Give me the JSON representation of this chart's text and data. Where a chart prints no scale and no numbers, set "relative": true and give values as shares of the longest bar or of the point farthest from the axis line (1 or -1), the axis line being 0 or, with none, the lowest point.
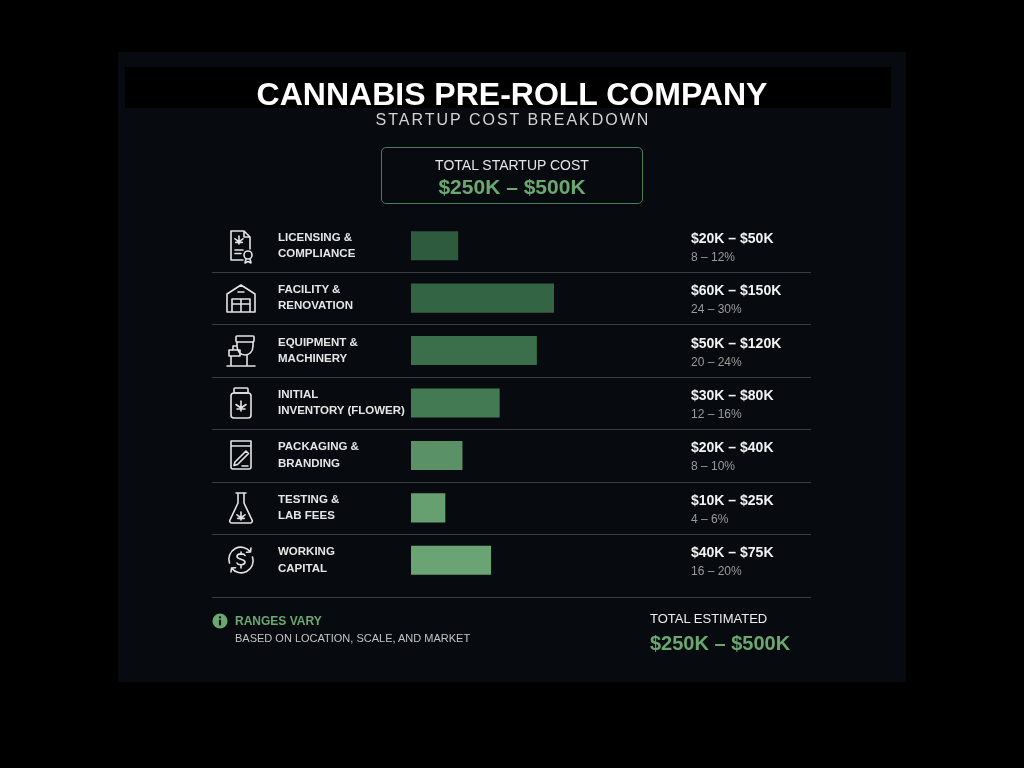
{
  "chart_data": {
    "type": "bar",
    "orientation": "horizontal",
    "relative": true,
    "grid": "y",
    "title": "CANNABIS PRE-ROLL COMPANY",
    "subtitle": "STARTUP COST BREAKDOWN",
    "categories": [
      "LICENSING & COMPLIANCE",
      "FACILITY & RENOVATION",
      "EQUIPMENT & MACHINERY",
      "INITIAL INVENTORY (FLOWER)",
      "PACKAGING & BRANDING",
      "TESTING & LAB FEES",
      "WORKING CAPITAL"
    ],
    "values": [
      0.33,
      1,
      0.88,
      0.62,
      0.36,
      0.24,
      0.56
    ],
    "colors": [
      "#2e5a3e",
      "#336444",
      "#3b6f4b",
      "#437a54",
      "#5b9166",
      "#66a071",
      "#6aa474"
    ],
    "annotations": [
      "TOTAL STARTUP COST",
      "$250K – $500K",
      "$20K – $50K",
      "8 – 12%",
      "$60K – $150K",
      "24 – 30%",
      "$50K – $120K",
      "20 – 24%",
      "$30K – $80K",
      "12 – 16%",
      "$20K – $40K",
      "8 – 10%",
      "$10K – $25K",
      "4 – 6%",
      "$40K – $75K",
      "16 – 20%",
      "RANGES VARY",
      "BASED ON LOCATION, SCALE, AND MARKET",
      "TOTAL ESTIMATED",
      "$250K – $500K"
    ]
  }
}
